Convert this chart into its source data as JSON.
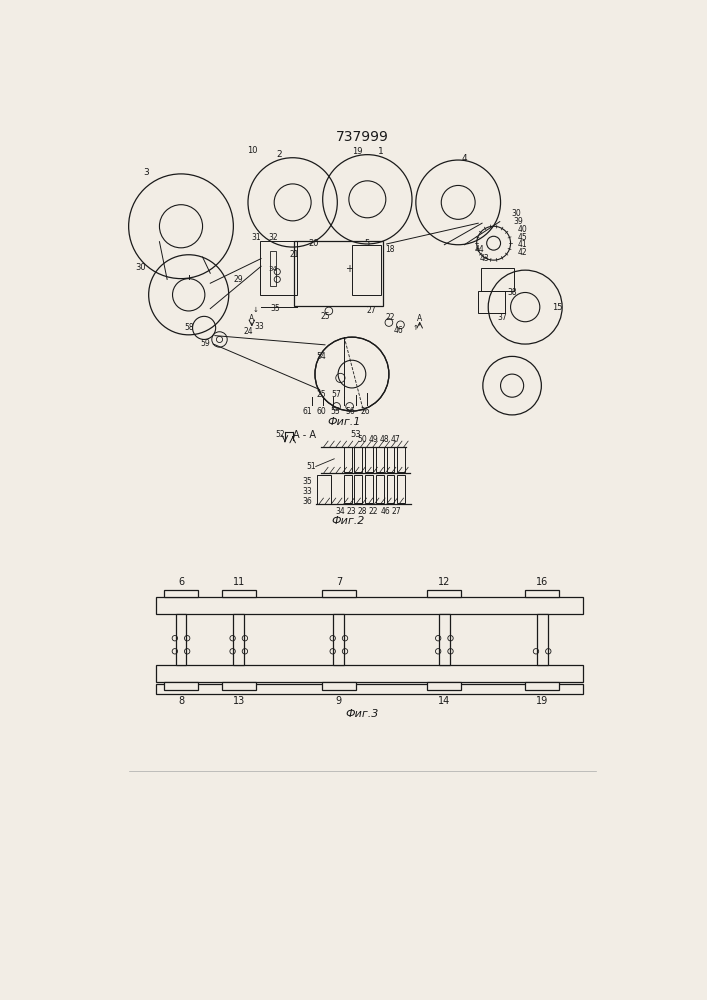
{
  "title": "737999",
  "bg": "#f2ede5",
  "lc": "#1a1a1a",
  "fig1_label": "Фиг.1",
  "fig2_label": "Фиг.2",
  "fig3_label": "Фиг.3"
}
